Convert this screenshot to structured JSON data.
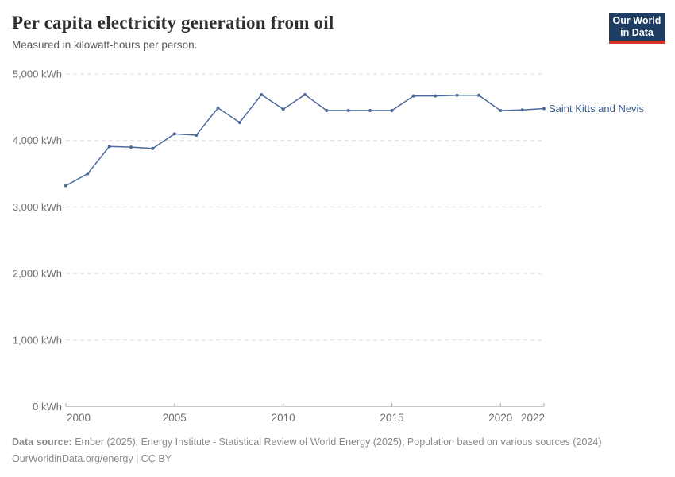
{
  "header": {
    "title": "Per capita electricity generation from oil",
    "subtitle": "Measured in kilowatt-hours per person.",
    "logo": {
      "line1": "Our World",
      "line2": "in Data"
    }
  },
  "chart_data": {
    "type": "line",
    "title": "Per capita electricity generation from oil",
    "subtitle": "Measured in kilowatt-hours per person.",
    "xlabel": "",
    "ylabel": "kilowatt-hours per person",
    "xlim": [
      2000,
      2022
    ],
    "ylim": [
      0,
      5000
    ],
    "grid": "horizontal-dashed",
    "legend_position": "right-of-line-end",
    "x": [
      2000,
      2001,
      2002,
      2003,
      2004,
      2005,
      2006,
      2007,
      2008,
      2009,
      2010,
      2011,
      2012,
      2013,
      2014,
      2015,
      2016,
      2017,
      2018,
      2019,
      2020,
      2021,
      2022
    ],
    "series": [
      {
        "name": "Saint Kitts and Nevis",
        "color": "#4c6a9c",
        "values": [
          3320,
          3500,
          3910,
          3900,
          3880,
          4100,
          4080,
          4490,
          4270,
          4690,
          4470,
          4690,
          4450,
          4450,
          4450,
          4450,
          4670,
          4670,
          4680,
          4680,
          4450,
          4460,
          4480
        ]
      }
    ],
    "yticks": [
      {
        "value": 0,
        "label": "0 kWh"
      },
      {
        "value": 1000,
        "label": "1,000 kWh"
      },
      {
        "value": 2000,
        "label": "2,000 kWh"
      },
      {
        "value": 3000,
        "label": "3,000 kWh"
      },
      {
        "value": 4000,
        "label": "4,000 kWh"
      },
      {
        "value": 5000,
        "label": "5,000 kWh"
      }
    ],
    "xticks": [
      {
        "value": 2000,
        "label": "2000"
      },
      {
        "value": 2005,
        "label": "2005"
      },
      {
        "value": 2010,
        "label": "2010"
      },
      {
        "value": 2015,
        "label": "2015"
      },
      {
        "value": 2020,
        "label": "2020"
      },
      {
        "value": 2022,
        "label": "2022"
      }
    ]
  },
  "footer": {
    "source_label": "Data source:",
    "source_text": " Ember (2025); Energy Institute - Statistical Review of World Energy (2025); Population based on various sources (2024)",
    "license_line": "OurWorldinData.org/energy | CC BY"
  },
  "colors": {
    "line": "#4c6a9c",
    "entity_label": "#3d5e8c",
    "gridline": "#dcdcdc",
    "axis_line": "#c8c8c8",
    "axis_tick": "#a8a8a8",
    "tick_text": "#6e6e6e",
    "logo_bg": "#1d3d63",
    "logo_accent": "#d7342a"
  }
}
